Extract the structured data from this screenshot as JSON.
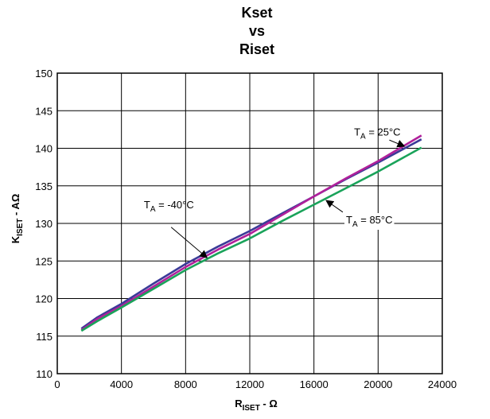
{
  "chart_data": {
    "type": "line",
    "title_lines": [
      "Kset",
      "vs",
      "Riset"
    ],
    "xlabel": {
      "main": "R",
      "sub": "ISET",
      "suffix": " - Ω"
    },
    "ylabel": {
      "main": "K",
      "sub": "ISET",
      "suffix": " - AΩ"
    },
    "xlim": [
      0,
      24000
    ],
    "ylim": [
      110,
      150
    ],
    "x_ticks": [
      0,
      4000,
      8000,
      12000,
      16000,
      20000,
      24000
    ],
    "y_ticks": [
      110,
      115,
      120,
      125,
      130,
      135,
      140,
      145,
      150
    ],
    "grid": true,
    "series": [
      {
        "name": "TA = -40°C",
        "color": "#3b3a98",
        "x": [
          1500,
          2500,
          4000,
          6000,
          8000,
          10000,
          12000,
          14000,
          16000,
          18000,
          20000,
          22700
        ],
        "y": [
          116.0,
          117.5,
          119.3,
          122.0,
          124.6,
          126.9,
          129.0,
          131.3,
          133.6,
          135.9,
          138.1,
          141.2
        ]
      },
      {
        "name": "TA = 25°C",
        "color": "#b0209a",
        "x": [
          1500,
          2500,
          4000,
          6000,
          8000,
          10000,
          12000,
          14000,
          16000,
          18000,
          20000,
          22700
        ],
        "y": [
          115.8,
          117.3,
          119.0,
          121.6,
          124.2,
          126.5,
          128.6,
          131.1,
          133.6,
          136.0,
          138.3,
          141.7
        ]
      },
      {
        "name": "TA = 85°C",
        "color": "#1aa35a",
        "x": [
          1500,
          2500,
          4000,
          6000,
          8000,
          10000,
          12000,
          14000,
          16000,
          18000,
          20000,
          22700
        ],
        "y": [
          115.7,
          117.0,
          118.8,
          121.3,
          123.8,
          126.0,
          128.0,
          130.3,
          132.5,
          134.7,
          136.9,
          140.1
        ]
      }
    ],
    "annotations": [
      {
        "main": "T",
        "sub": "A",
        "rest": " = 25°C",
        "text_at": [
          18500,
          141.7
        ],
        "arrow_from": [
          20700,
          141.1
        ],
        "arrow_to": [
          21600,
          140.3
        ]
      },
      {
        "main": "T",
        "sub": "A",
        "rest": " = -40°C",
        "text_at": [
          5400,
          132.0
        ],
        "arrow_from": [
          7100,
          129.5
        ],
        "arrow_to": [
          9300,
          125.5
        ]
      },
      {
        "main": "T",
        "sub": "A",
        "rest": " = 85°C",
        "text_at": [
          18000,
          130.0
        ],
        "arrow_from": [
          17800,
          131.5
        ],
        "arrow_to": [
          16800,
          133.0
        ]
      }
    ]
  }
}
